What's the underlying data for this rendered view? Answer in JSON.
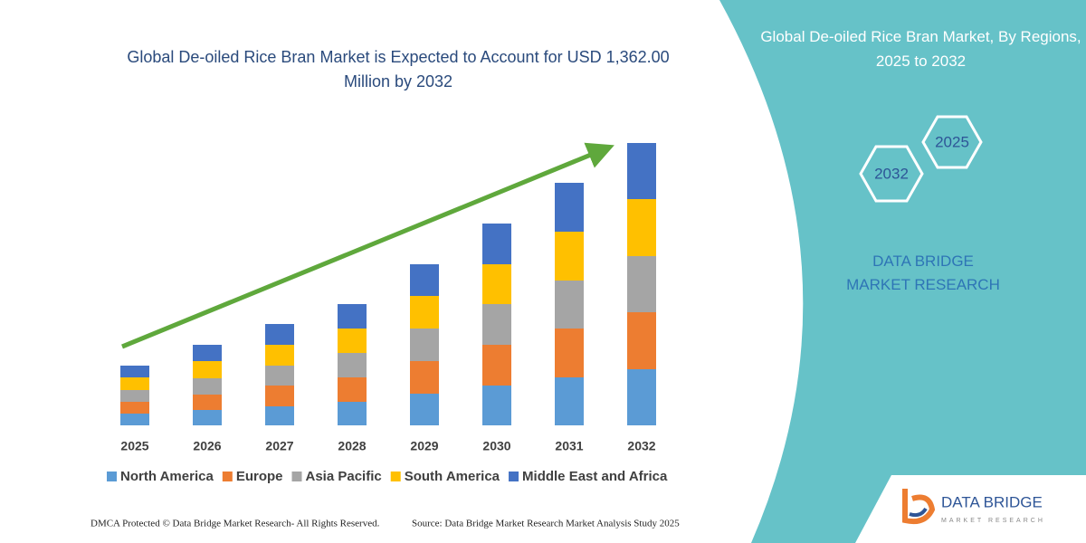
{
  "chart_data": {
    "type": "stacked-bar",
    "title": "Global De-oiled Rice Bran Market is Expected to Account for USD 1,362.00 Million by 2032",
    "categories": [
      "2025",
      "2026",
      "2027",
      "2028",
      "2029",
      "2030",
      "2031",
      "2032"
    ],
    "series": [
      {
        "name": "North America",
        "color": "#5b9bd5",
        "values": [
          13,
          17,
          21,
          26,
          35,
          44,
          53,
          62
        ]
      },
      {
        "name": "Europe",
        "color": "#ed7d31",
        "values": [
          13,
          17,
          23,
          27,
          36,
          45,
          54,
          63
        ]
      },
      {
        "name": "Asia Pacific",
        "color": "#a5a5a5",
        "values": [
          13,
          18,
          22,
          27,
          36,
          45,
          53,
          62
        ]
      },
      {
        "name": "South America",
        "color": "#ffc000",
        "values": [
          14,
          19,
          23,
          27,
          36,
          44,
          54,
          63
        ]
      },
      {
        "name": "Middle East and Africa",
        "color": "#4472c4",
        "values": [
          13,
          18,
          23,
          27,
          35,
          45,
          54,
          62
        ]
      }
    ]
  },
  "side_panel": {
    "title": "Global De-oiled Rice Bran Market, By Regions, 2025 to 2032",
    "hex_start": "2025",
    "hex_end": "2032",
    "brand": "DATA BRIDGE MARKET RESEARCH"
  },
  "logo": {
    "name": "DATA BRIDGE",
    "tagline": "MARKET RESEARCH"
  },
  "footer": {
    "left": "DMCA Protected © Data Bridge Market Research-  All Rights Reserved.",
    "right": "Source: Data Bridge Market Research  Market Analysis Study 2025"
  }
}
